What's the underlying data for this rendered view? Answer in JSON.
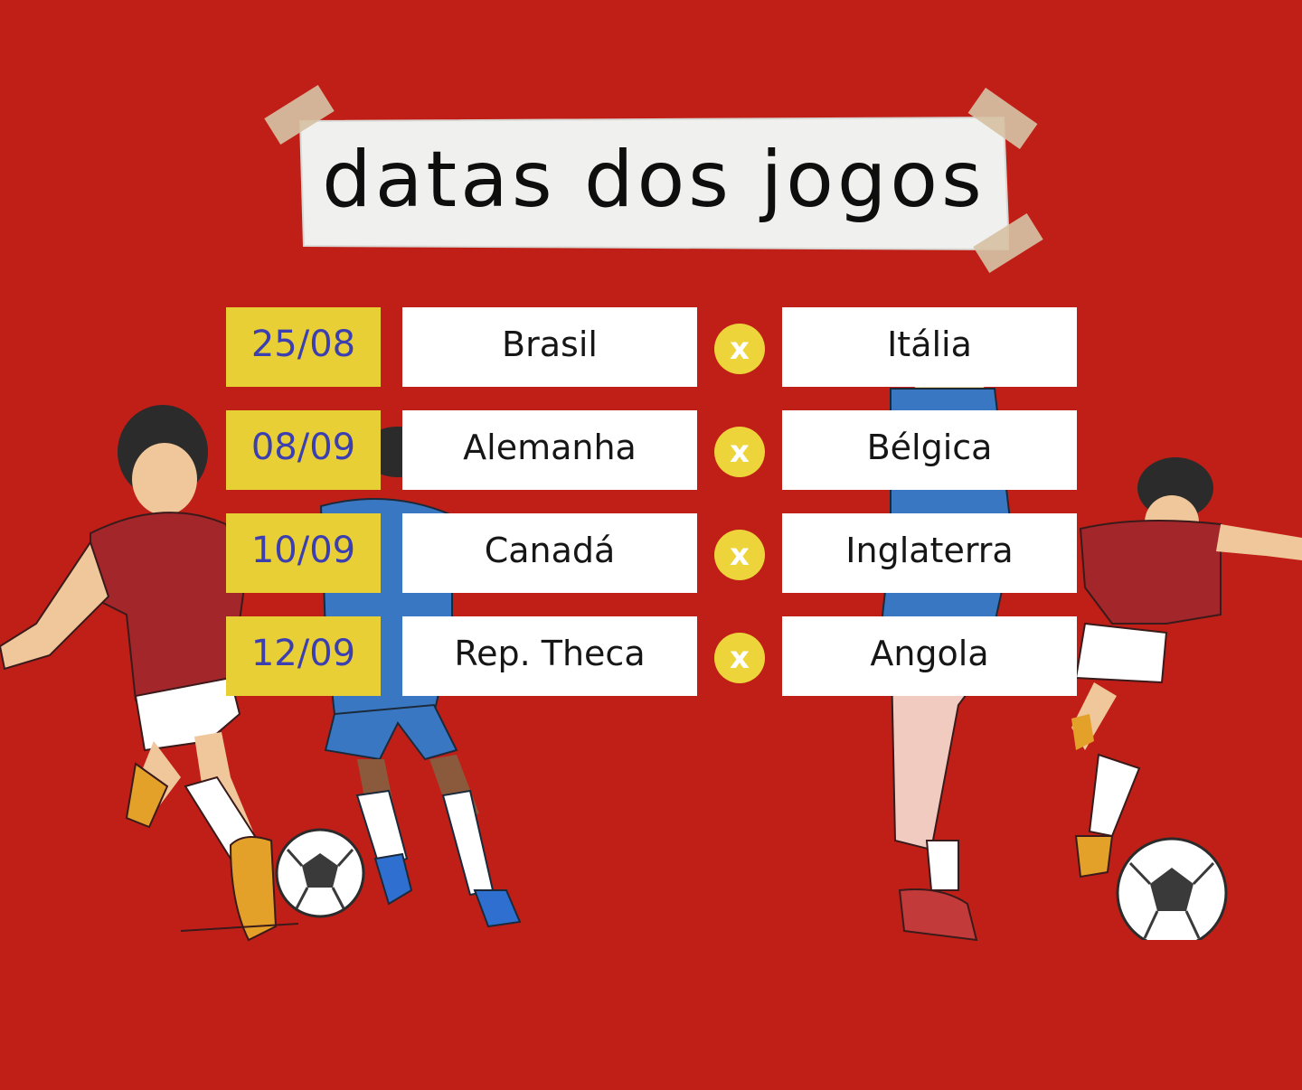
{
  "title": "datas dos jogos",
  "vs_label": "x",
  "colors": {
    "background": "#c01f17",
    "date_box": "#e8cf36",
    "date_text": "#3b3fb0",
    "vs_circle": "#ecd43a"
  },
  "matches": [
    {
      "date": "25/08",
      "home": "Brasil",
      "away": "Itália"
    },
    {
      "date": "08/09",
      "home": "Alemanha",
      "away": "Bélgica"
    },
    {
      "date": "10/09",
      "home": "Canadá",
      "away": "Inglaterra"
    },
    {
      "date": "12/09",
      "home": "Rep. Theca",
      "away": "Angola"
    }
  ]
}
